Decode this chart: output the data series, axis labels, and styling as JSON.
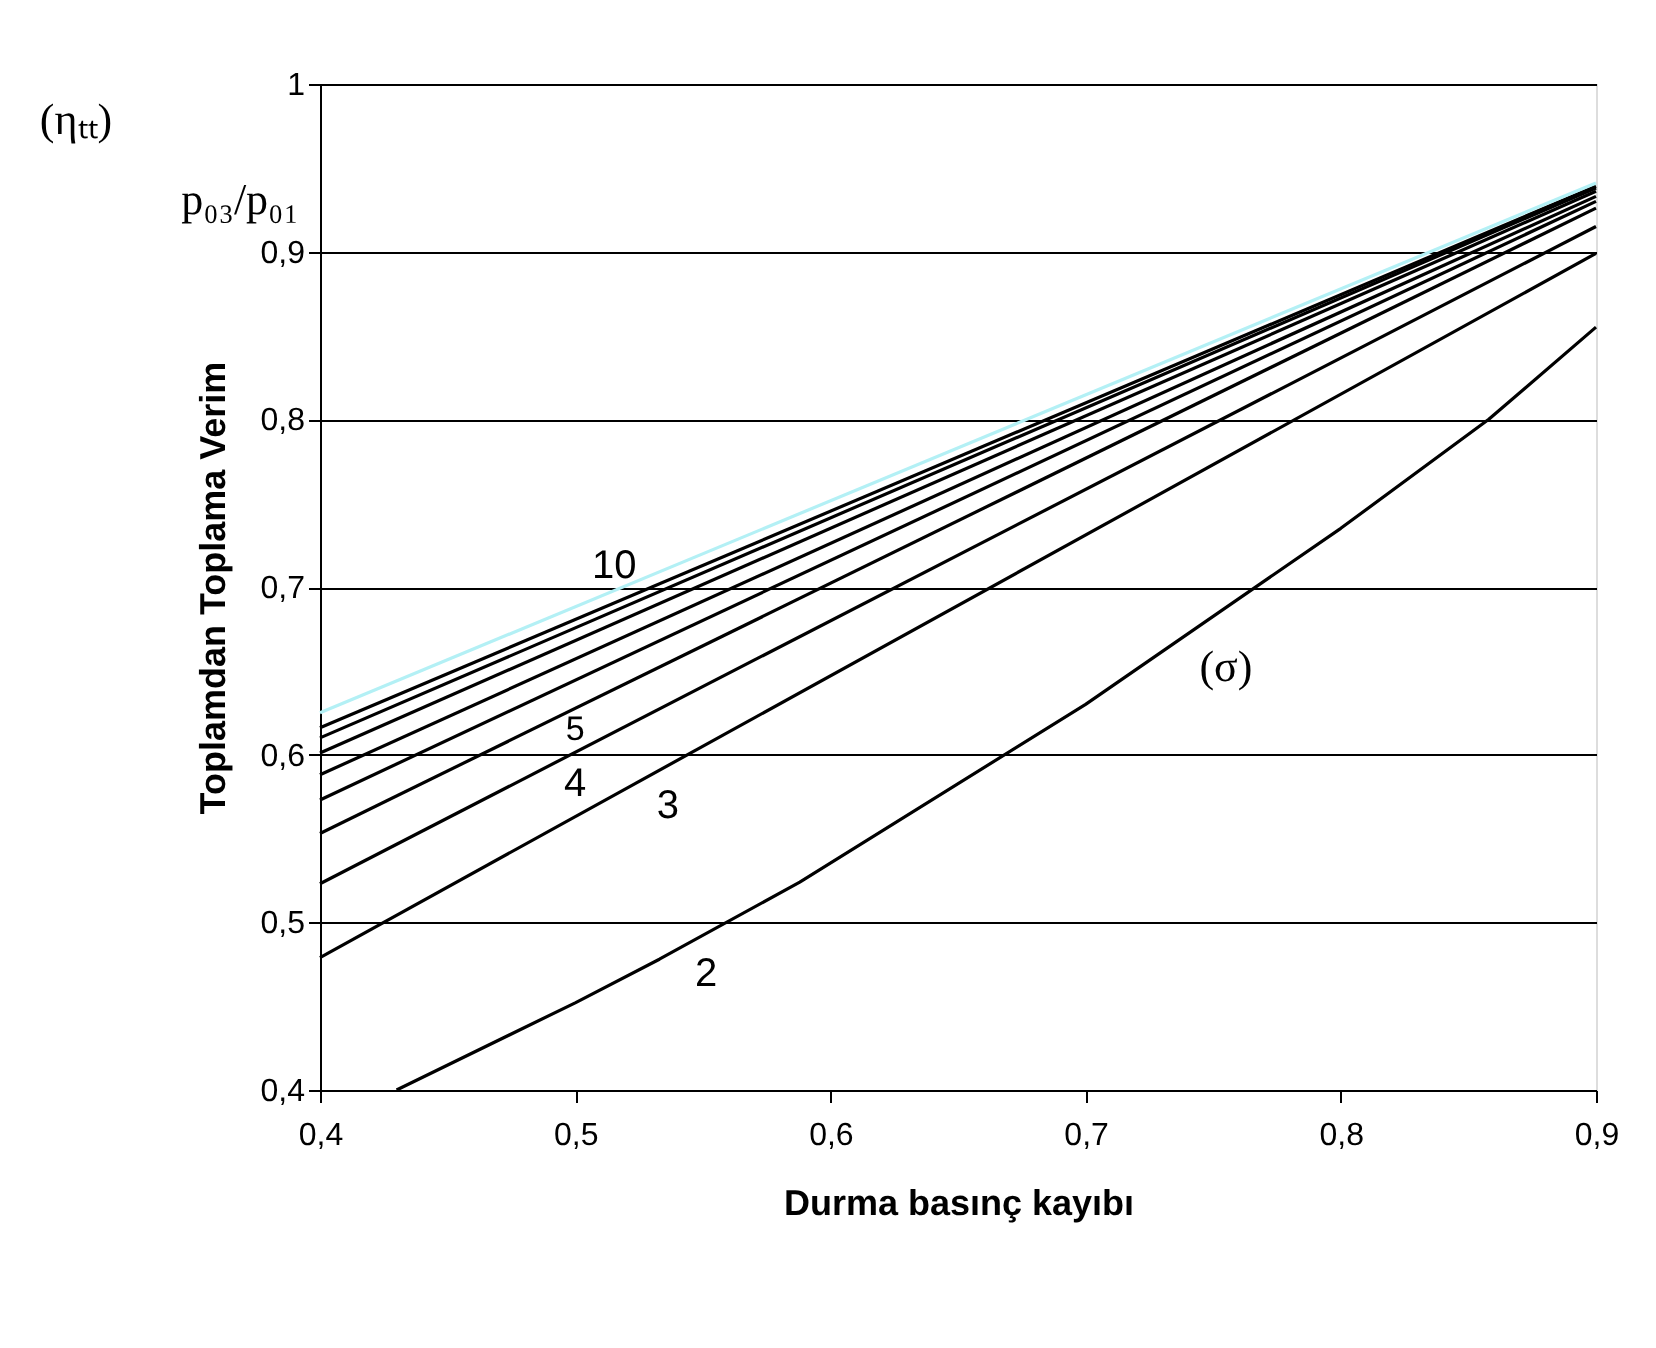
{
  "chart_data": {
    "type": "line",
    "xlabel": "Durma basınç kayıbı",
    "ylabel": "Toplamdan Toplama Verim",
    "xlim": [
      0.4,
      0.9
    ],
    "xticks": [
      {
        "value": 0.4,
        "label": "0,4"
      },
      {
        "value": 0.5,
        "label": "0,5"
      },
      {
        "value": 0.6,
        "label": "0,6"
      },
      {
        "value": 0.7,
        "label": "0,7"
      },
      {
        "value": 0.8,
        "label": "0,8"
      },
      {
        "value": 0.9,
        "label": "0,9"
      }
    ],
    "ylim": [
      0.4,
      1.0
    ],
    "yticks": [
      {
        "value": 0.4,
        "label": "0,4"
      },
      {
        "value": 0.5,
        "label": "0,5"
      },
      {
        "value": 0.6,
        "label": "0,6"
      },
      {
        "value": 0.7,
        "label": "0,7"
      },
      {
        "value": 0.8,
        "label": "0,8"
      },
      {
        "value": 0.9,
        "label": "0,9"
      },
      {
        "value": 1,
        "label": "1"
      }
    ],
    "grid": "y",
    "legend": false,
    "marker": "none",
    "line_style": "solid",
    "series": [
      {
        "name": "2",
        "color": "#000000",
        "x": [
          0.43,
          0.5,
          0.533,
          0.588,
          0.7,
          0.8,
          0.858,
          0.9
        ],
        "values": [
          0.4,
          0.452,
          0.478,
          0.524,
          0.63,
          0.735,
          0.8,
          0.855
        ]
      },
      {
        "name": "3",
        "color": "#000000",
        "x": [
          0.4,
          0.9
        ],
        "values": [
          0.479,
          0.899
        ]
      },
      {
        "name": "4",
        "color": "#000000",
        "x": [
          0.4,
          0.9
        ],
        "values": [
          0.523,
          0.915
        ]
      },
      {
        "name": "5",
        "color": "#000000",
        "x": [
          0.4,
          0.9
        ],
        "values": [
          0.553,
          0.926
        ]
      },
      {
        "color": "#000000",
        "x": [
          0.4,
          0.9
        ],
        "values": [
          0.573,
          0.93
        ]
      },
      {
        "color": "#000000",
        "x": [
          0.4,
          0.9
        ],
        "values": [
          0.588,
          0.933
        ]
      },
      {
        "color": "#000000",
        "x": [
          0.4,
          0.9
        ],
        "values": [
          0.601,
          0.936
        ]
      },
      {
        "color": "#000000",
        "x": [
          0.4,
          0.9
        ],
        "values": [
          0.61,
          0.938
        ]
      },
      {
        "name": "10",
        "color": "#000000",
        "x": [
          0.4,
          0.9
        ],
        "values": [
          0.616,
          0.939
        ]
      },
      {
        "color": "#b3f0f5",
        "x": [
          0.4,
          0.9
        ],
        "values": [
          0.625,
          0.941
        ]
      }
    ],
    "annotations": [
      "(σ)",
      "(ηₜₜ)",
      "p₀₃/p₀₁"
    ]
  }
}
